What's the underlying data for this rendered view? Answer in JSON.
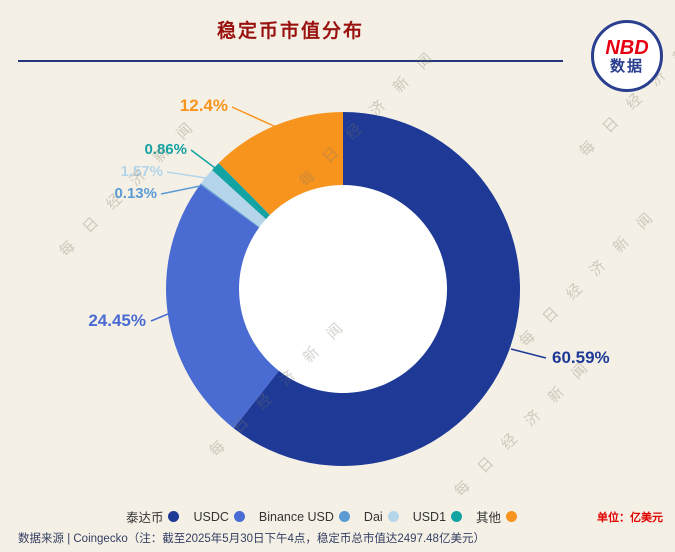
{
  "header": {
    "title": "稳定币市值分布",
    "logo": {
      "line1": "NBD",
      "line2": "数据"
    }
  },
  "chart_data": {
    "type": "pie",
    "subtype": "donut",
    "title": "稳定币市值分布",
    "unit": "亿美元",
    "categories": [
      "泰达币",
      "USDC",
      "Binance USD",
      "Dai",
      "USD1",
      "其他"
    ],
    "values": [
      60.59,
      24.45,
      0.13,
      1.57,
      0.86,
      12.4
    ],
    "labels": [
      "60.59%",
      "24.45%",
      "0.13%",
      "1.57%",
      "0.86%",
      "12.4%"
    ],
    "colors": [
      "#1e3a96",
      "#4a6bd2",
      "#5b9bd5",
      "#b5d5ea",
      "#14a3a3",
      "#f7941e"
    ],
    "start_angle_deg": 0,
    "direction": "clockwise",
    "legend_position": "bottom",
    "annotation": "截至2025年5月30日下午4点，稳定币总市值达2497.48亿美元"
  },
  "footer": {
    "unit": "单位：亿美元",
    "source": "数据来源 | Coingecko（注：截至2025年5月30日下午4点，稳定币总市值达2497.48亿美元）"
  },
  "watermark": "每日经济新闻"
}
